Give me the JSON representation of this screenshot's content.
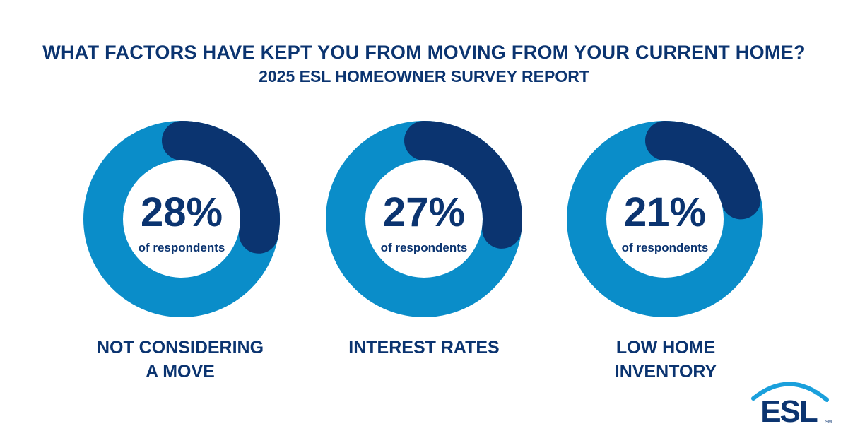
{
  "header": {
    "title": "WHAT FACTORS HAVE KEPT YOU FROM MOVING FROM YOUR CURRENT HOME?",
    "subtitle": "2025 ESL HOMEOWNER SURVEY REPORT"
  },
  "chart_data": {
    "type": "pie",
    "style": "donut",
    "title": "WHAT FACTORS HAVE KEPT YOU FROM MOVING FROM YOUR CURRENT HOME?",
    "subtitle": "2025 ESL HOMEOWNER SURVEY REPORT",
    "unit": "%",
    "caption": "of respondents",
    "categories": [
      "NOT CONSIDERING A MOVE",
      "INTEREST RATES",
      "LOW HOME INVENTORY"
    ],
    "category_lines": [
      [
        "NOT CONSIDERING",
        "A MOVE"
      ],
      [
        "INTEREST RATES"
      ],
      [
        "LOW HOME",
        "INVENTORY"
      ]
    ],
    "values": [
      28,
      27,
      21
    ],
    "value_labels": [
      "28%",
      "27%",
      "21%"
    ],
    "colors": {
      "highlight": "#0b3470",
      "remainder": "#0a8dc9"
    }
  },
  "logo": {
    "text": "ESL",
    "mark": "SM"
  }
}
